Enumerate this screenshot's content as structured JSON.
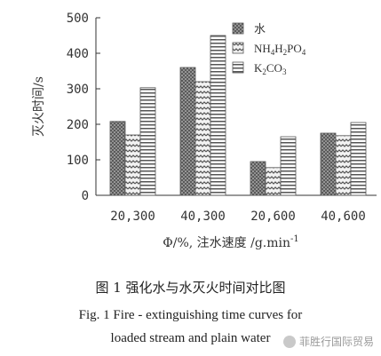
{
  "chart_data": {
    "type": "bar",
    "title": "",
    "ylabel": "灭火时间/s",
    "xlabel": "Φ/%, 注水速度 /g.min",
    "xlabel_sup": "-1",
    "ylim": [
      0,
      500
    ],
    "yticks": [
      0,
      100,
      200,
      300,
      400,
      500
    ],
    "categories": [
      "20,300",
      "40,300",
      "20,600",
      "40,600"
    ],
    "series": [
      {
        "name": "水",
        "values": [
          208,
          360,
          95,
          175
        ],
        "pattern": "dots"
      },
      {
        "name": "NH4H2PO4",
        "values": [
          170,
          320,
          78,
          168
        ],
        "pattern": "wave"
      },
      {
        "name": "K2CO3",
        "values": [
          303,
          450,
          165,
          205
        ],
        "pattern": "stripes"
      }
    ],
    "legend_labels": {
      "water": "水",
      "nh4_a": "NH",
      "nh4_b": "4",
      "nh4_c": "H",
      "nh4_d": "2",
      "nh4_e": "PO",
      "nh4_f": "4",
      "k_a": "K",
      "k_b": "2",
      "k_c": "CO",
      "k_d": "3"
    },
    "legend_placement": "top-right",
    "grid": false
  },
  "captions": {
    "cn": "图 1   强化水与水灭火时间对比图",
    "en1": "Fig. 1    Fire - extinguishing time curves for",
    "en2": "loaded stream and plain water"
  },
  "watermark": {
    "text": "菲胜行国际贸易",
    "icon": "wechat-icon"
  }
}
